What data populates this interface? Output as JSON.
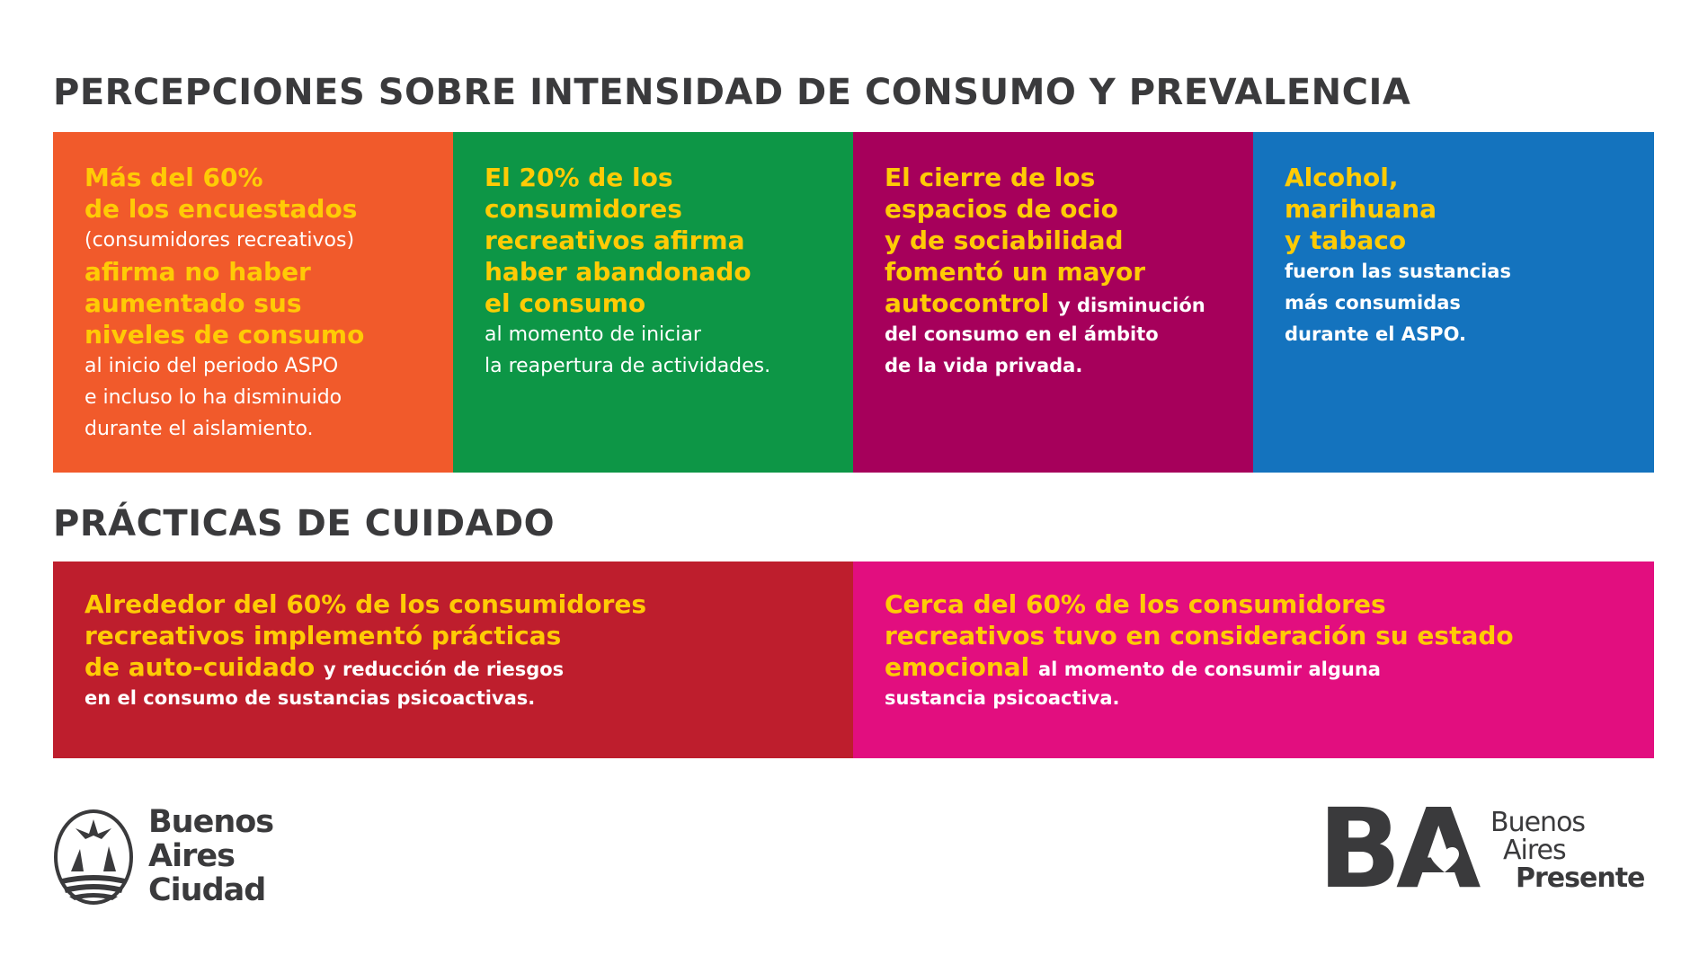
{
  "section1": {
    "title": "PERCEPCIONES SOBRE INTENSIDAD DE CONSUMO Y PREVALENCIA",
    "cards": [
      {
        "color": "#f15a2b",
        "lines": [
          [
            {
              "t": "Más del 60%",
              "s": "y"
            }
          ],
          [
            {
              "t": "de los encuestados",
              "s": "y"
            }
          ],
          [
            {
              "t": "(consumidores recreativos)",
              "s": "w"
            }
          ],
          [
            {
              "t": "afirma no haber",
              "s": "y"
            }
          ],
          [
            {
              "t": "aumentado sus",
              "s": "y"
            }
          ],
          [
            {
              "t": "niveles de consumo",
              "s": "y"
            }
          ],
          [
            {
              "t": "al inicio del periodo ASPO",
              "s": "w"
            }
          ],
          [
            {
              "t": "e incluso lo ha disminuido",
              "s": "w"
            }
          ],
          [
            {
              "t": "durante el aislamiento.",
              "s": "w"
            }
          ]
        ]
      },
      {
        "color": "#0d9646",
        "lines": [
          [
            {
              "t": "El 20% de los",
              "s": "y"
            }
          ],
          [
            {
              "t": "consumidores",
              "s": "y"
            }
          ],
          [
            {
              "t": "recreativos afirma",
              "s": "y"
            }
          ],
          [
            {
              "t": "haber abandonado",
              "s": "y"
            }
          ],
          [
            {
              "t": "el consumo",
              "s": "y"
            }
          ],
          [
            {
              "t": "al momento de iniciar",
              "s": "w"
            }
          ],
          [
            {
              "t": "la reapertura de actividades.",
              "s": "w"
            }
          ]
        ]
      },
      {
        "color": "#a6005b",
        "lines": [
          [
            {
              "t": "El cierre de los",
              "s": "y"
            }
          ],
          [
            {
              "t": "espacios de ocio",
              "s": "y"
            }
          ],
          [
            {
              "t": "y de sociabilidad",
              "s": "y"
            }
          ],
          [
            {
              "t": "fomentó un mayor",
              "s": "y"
            }
          ],
          [
            {
              "t": "autocontrol ",
              "s": "y"
            },
            {
              "t": "y disminución",
              "s": "wb"
            }
          ],
          [
            {
              "t": "del consumo en el ámbito",
              "s": "wb"
            }
          ],
          [
            {
              "t": "de la vida privada.",
              "s": "wb"
            }
          ]
        ]
      },
      {
        "color": "#1473be",
        "lines": [
          [
            {
              "t": "Alcohol,",
              "s": "y"
            }
          ],
          [
            {
              "t": "marihuana",
              "s": "y"
            }
          ],
          [
            {
              "t": "y tabaco",
              "s": "y"
            }
          ],
          [
            {
              "t": "fueron las sustancias",
              "s": "wb"
            }
          ],
          [
            {
              "t": "más consumidas",
              "s": "wb"
            }
          ],
          [
            {
              "t": "durante el ASPO.",
              "s": "wb"
            }
          ]
        ]
      }
    ]
  },
  "section2": {
    "title": "PRÁCTICAS DE CUIDADO",
    "cards": [
      {
        "color": "#be1e2d",
        "lines": [
          [
            {
              "t": "Alrededor del 60% de los consumidores",
              "s": "y"
            }
          ],
          [
            {
              "t": "recreativos implementó prácticas",
              "s": "y"
            }
          ],
          [
            {
              "t": "de auto-cuidado ",
              "s": "y"
            },
            {
              "t": "y reducción de riesgos",
              "s": "wb"
            }
          ],
          [
            {
              "t": "en el consumo de sustancias psicoactivas.",
              "s": "wb"
            }
          ]
        ]
      },
      {
        "color": "#e20e7f",
        "lines": [
          [
            {
              "t": "Cerca del 60% de los consumidores",
              "s": "y"
            }
          ],
          [
            {
              "t": "recreativos tuvo en consideración su estado",
              "s": "y"
            }
          ],
          [
            {
              "t": "emocional ",
              "s": "y"
            },
            {
              "t": "al momento de consumir alguna",
              "s": "wb"
            }
          ],
          [
            {
              "t": "sustancia psicoactiva.",
              "s": "wb"
            }
          ]
        ]
      }
    ]
  },
  "logos": {
    "left": {
      "lines": [
        "Buenos",
        "Aires",
        "Ciudad"
      ]
    },
    "right": {
      "mark": "BA",
      "lines": [
        "Buenos",
        "Aires",
        "Presente"
      ]
    }
  },
  "colors": {
    "highlight": "#ffcb05",
    "heading": "#3a3a3c"
  }
}
